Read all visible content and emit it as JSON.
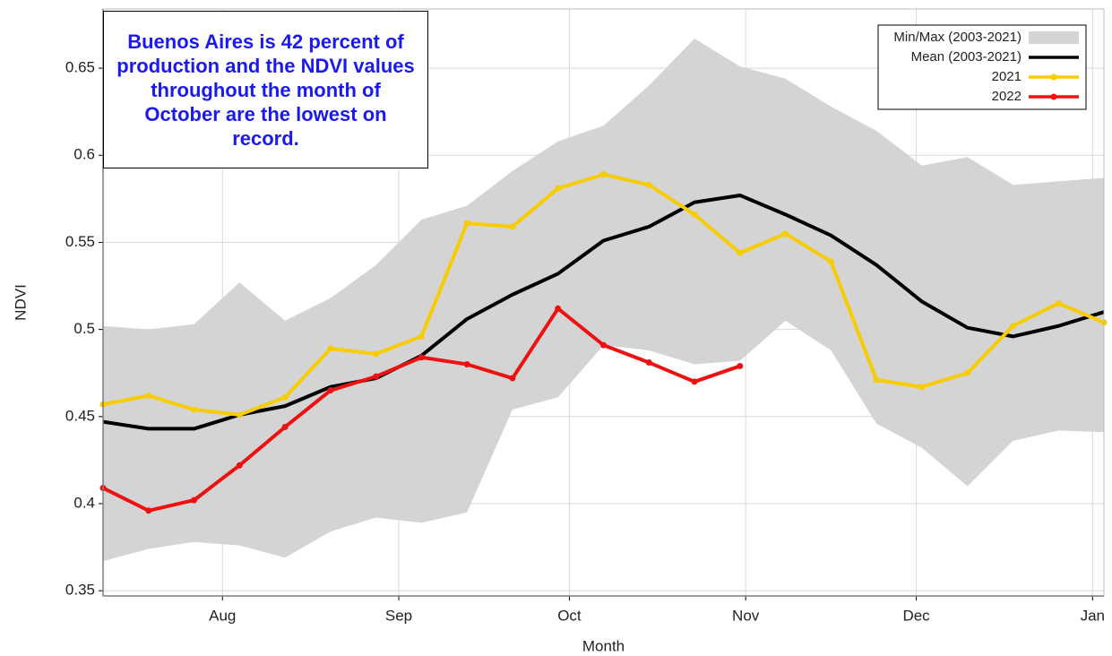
{
  "chart_data": {
    "type": "line",
    "annotation": "Buenos Aires is 42 percent of production and the NDVI values throughout the month of October are the lowest on record.",
    "xlabel": "Month",
    "ylabel": "NDVI",
    "x": [
      192,
      200,
      208,
      216,
      224,
      232,
      240,
      248,
      256,
      264,
      272,
      280,
      288,
      296,
      304,
      312,
      320,
      328,
      336,
      344,
      352,
      360,
      368
    ],
    "xlim": [
      192,
      368
    ],
    "xticks": [
      {
        "value": 213,
        "label": "Aug"
      },
      {
        "value": 244,
        "label": "Sep"
      },
      {
        "value": 274,
        "label": "Oct"
      },
      {
        "value": 305,
        "label": "Nov"
      },
      {
        "value": 335,
        "label": "Dec"
      },
      {
        "value": 366,
        "label": "Jan"
      }
    ],
    "ylim": [
      0.347,
      0.684
    ],
    "yticks": [
      0.35,
      0.4,
      0.45,
      0.5,
      0.55,
      0.6,
      0.65
    ],
    "grid": true,
    "legend": "upper right",
    "band": {
      "name": "Min/Max (2003-2021)",
      "color": "#d4d4d4",
      "upper": [
        0.502,
        0.5,
        0.503,
        0.527,
        0.505,
        0.518,
        0.537,
        0.563,
        0.571,
        0.591,
        0.608,
        0.617,
        0.64,
        0.667,
        0.651,
        0.644,
        0.628,
        0.614,
        0.594,
        0.599,
        0.583,
        0.585,
        0.587
      ],
      "lower": [
        0.367,
        0.374,
        0.378,
        0.376,
        0.369,
        0.384,
        0.392,
        0.389,
        0.395,
        0.454,
        0.461,
        0.491,
        0.488,
        0.48,
        0.482,
        0.505,
        0.488,
        0.446,
        0.432,
        0.41,
        0.436,
        0.442,
        0.441
      ]
    },
    "series": [
      {
        "name": "Mean (2003-2021)",
        "color": "#000000",
        "markers": false,
        "values": [
          0.447,
          0.443,
          0.443,
          0.451,
          0.456,
          0.467,
          0.472,
          0.485,
          0.506,
          0.52,
          0.532,
          0.551,
          0.559,
          0.573,
          0.577,
          0.566,
          0.554,
          0.537,
          0.516,
          0.501,
          0.496,
          0.502,
          0.51
        ]
      },
      {
        "name": "2021",
        "color": "#f7cc00",
        "markers": true,
        "values": [
          0.457,
          0.462,
          0.454,
          0.451,
          0.461,
          0.489,
          0.486,
          0.496,
          0.561,
          0.559,
          0.581,
          0.589,
          0.583,
          0.566,
          0.544,
          0.555,
          0.539,
          0.471,
          0.467,
          0.475,
          0.502,
          0.515,
          0.504
        ]
      },
      {
        "name": "2022",
        "color": "#ee1111",
        "markers": true,
        "values": [
          0.409,
          0.396,
          0.402,
          0.422,
          0.444,
          0.465,
          0.473,
          0.484,
          0.48,
          0.472,
          0.512,
          0.491,
          0.481,
          0.47,
          0.479,
          null,
          null,
          null,
          null,
          null,
          null,
          null,
          null
        ]
      }
    ]
  }
}
